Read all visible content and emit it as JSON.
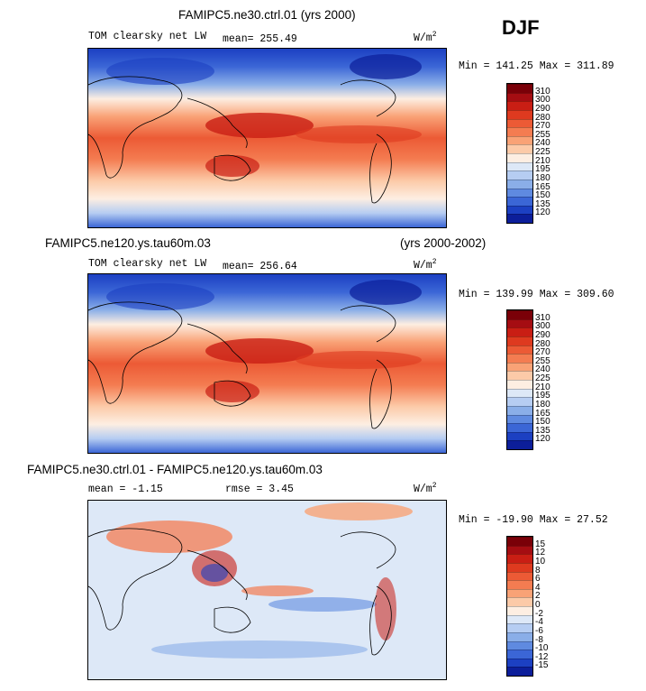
{
  "season": "DJF",
  "units_prefix": "W/m",
  "units_exp": "2",
  "panel1": {
    "title": "FAMIPC5.ne30.ctrl.01 (yrs 2000)",
    "subtitle": "TOM clearsky net LW",
    "mean": "mean= 255.49",
    "minmax": "Min = 141.25 Max = 311.89"
  },
  "panel2": {
    "title": "FAMIPC5.ne120.ys.tau60m.03",
    "years": "(yrs 2000-2002)",
    "subtitle": "TOM clearsky net LW",
    "mean": "mean= 256.64",
    "minmax": "Min = 139.99 Max = 309.60"
  },
  "panel3": {
    "title": "FAMIPC5.ne30.ctrl.01 - FAMIPC5.ne120.ys.tau60m.03",
    "mean": "mean =   -1.15",
    "rmse": "rmse =    3.45",
    "minmax": "Min = -19.90 Max =  27.52"
  },
  "colorbar_abs": {
    "labels": [
      "310",
      "300",
      "290",
      "280",
      "270",
      "255",
      "240",
      "225",
      "210",
      "195",
      "180",
      "165",
      "150",
      "135",
      "120"
    ],
    "colors": [
      "#7a0008",
      "#a50d12",
      "#c91e14",
      "#de3a1f",
      "#ec5a35",
      "#f47c51",
      "#f9a276",
      "#fccaa8",
      "#fdeee2",
      "#dde8f7",
      "#b6cdf2",
      "#8aaee8",
      "#5f8ae0",
      "#3b66d6",
      "#1c40c2",
      "#0c1e9a"
    ]
  },
  "colorbar_diff": {
    "labels": [
      "15",
      "12",
      "10",
      "8",
      "6",
      "4",
      "2",
      "0",
      "-2",
      "-4",
      "-6",
      "-8",
      "-10",
      "-12",
      "-15"
    ],
    "colors": [
      "#7a0008",
      "#a50d12",
      "#c91e14",
      "#de3a1f",
      "#ec5a35",
      "#f47c51",
      "#f9a276",
      "#fccaa8",
      "#fdeee2",
      "#dde8f7",
      "#b6cdf2",
      "#8aaee8",
      "#5f8ae0",
      "#3b66d6",
      "#1c40c2",
      "#0c1e9a"
    ]
  }
}
